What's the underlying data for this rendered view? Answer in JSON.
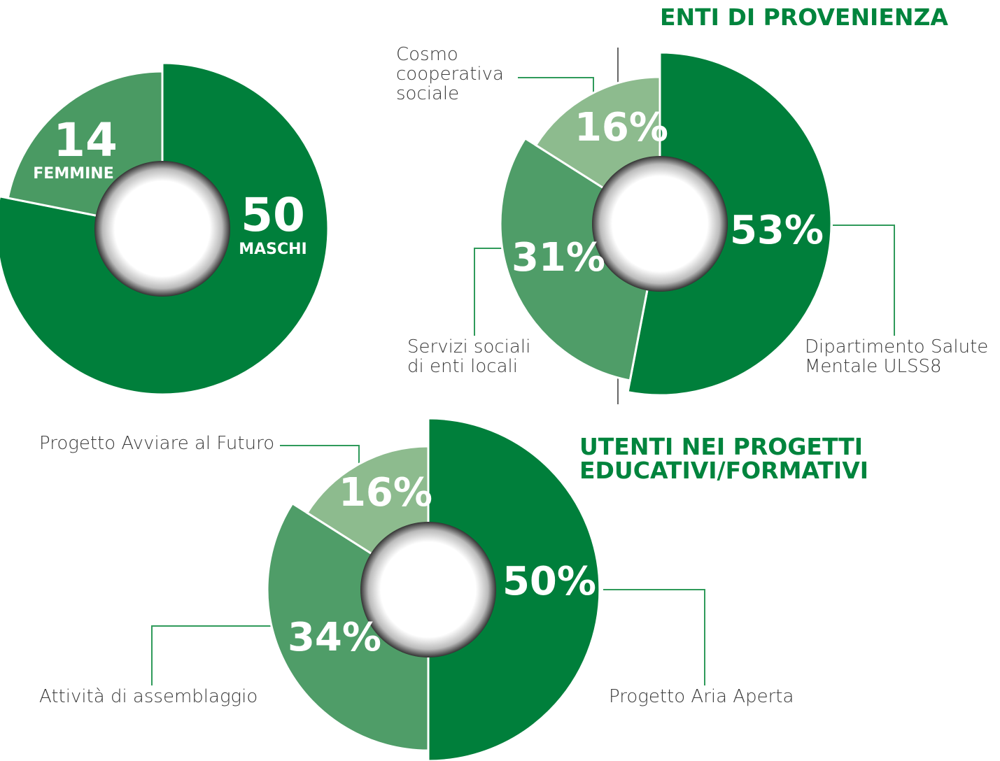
{
  "chart_data": [
    {
      "type": "donut",
      "categories": [
        "MASCHI",
        "FEMMINE"
      ],
      "values": [
        50,
        14
      ],
      "colors": [
        "#007f3b",
        "#4a9a63"
      ]
    },
    {
      "type": "donut",
      "title": "ENTI DI PROVENIENZA",
      "categories": [
        "Dipartimento Salute Mentale ULSS8",
        "Servizi sociali di enti locali",
        "Cosmo cooperativa sociale"
      ],
      "values": [
        53,
        31,
        16
      ],
      "value_labels": [
        "53%",
        "31%",
        "16%"
      ],
      "colors": [
        "#007f3b",
        "#4f9d68",
        "#8dbb8e"
      ]
    },
    {
      "type": "donut",
      "title": "UTENTI NEI PROGETTI EDUCATIVI/FORMATIVI",
      "categories": [
        "Progetto Aria Aperta",
        "Attività di assemblaggio",
        "Progetto Avviare al Futuro"
      ],
      "values": [
        50,
        34,
        16
      ],
      "value_labels": [
        "50%",
        "34%",
        "16%"
      ],
      "colors": [
        "#007f3b",
        "#4f9d68",
        "#8dbb8e"
      ]
    }
  ]
}
